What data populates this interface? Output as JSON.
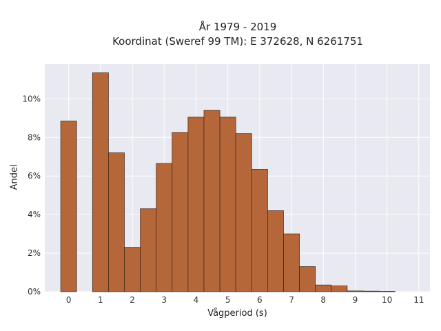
{
  "chart_data": {
    "type": "bar",
    "title_line1": "År 1979 - 2019",
    "title_line2": "Koordinat (Sweref 99 TM): E 372628, N 6261751",
    "xlabel": "Vågperiod (s)",
    "ylabel": "Andel",
    "xlim": [
      -0.75,
      11.35
    ],
    "ylim": [
      0,
      11.8
    ],
    "x_ticks": [
      0,
      1,
      2,
      3,
      4,
      5,
      6,
      7,
      8,
      9,
      10,
      11
    ],
    "y_ticks": [
      0,
      2,
      4,
      6,
      8,
      10
    ],
    "y_tick_labels": [
      "0%",
      "2%",
      "4%",
      "6%",
      "8%",
      "10%"
    ],
    "bar_width": 0.5,
    "bins": [
      {
        "x": 0.0,
        "value": 8.85
      },
      {
        "x": 1.0,
        "value": 11.35
      },
      {
        "x": 1.5,
        "value": 7.2
      },
      {
        "x": 2.0,
        "value": 2.3
      },
      {
        "x": 2.5,
        "value": 4.3
      },
      {
        "x": 3.0,
        "value": 6.65
      },
      {
        "x": 3.5,
        "value": 8.25
      },
      {
        "x": 4.0,
        "value": 9.05
      },
      {
        "x": 4.5,
        "value": 9.4
      },
      {
        "x": 5.0,
        "value": 9.05
      },
      {
        "x": 5.5,
        "value": 8.2
      },
      {
        "x": 6.0,
        "value": 6.35
      },
      {
        "x": 6.5,
        "value": 4.2
      },
      {
        "x": 7.0,
        "value": 3.0
      },
      {
        "x": 7.5,
        "value": 1.3
      },
      {
        "x": 8.0,
        "value": 0.35
      },
      {
        "x": 8.5,
        "value": 0.3
      },
      {
        "x": 9.0,
        "value": 0.04
      },
      {
        "x": 9.5,
        "value": 0.03
      },
      {
        "x": 10.0,
        "value": 0.02
      }
    ],
    "grid": true,
    "colors": {
      "bar_fill": "#b5673a",
      "bar_stroke": "#3a2418",
      "plot_bg": "#e8e9f1",
      "grid": "#ffffff"
    }
  }
}
